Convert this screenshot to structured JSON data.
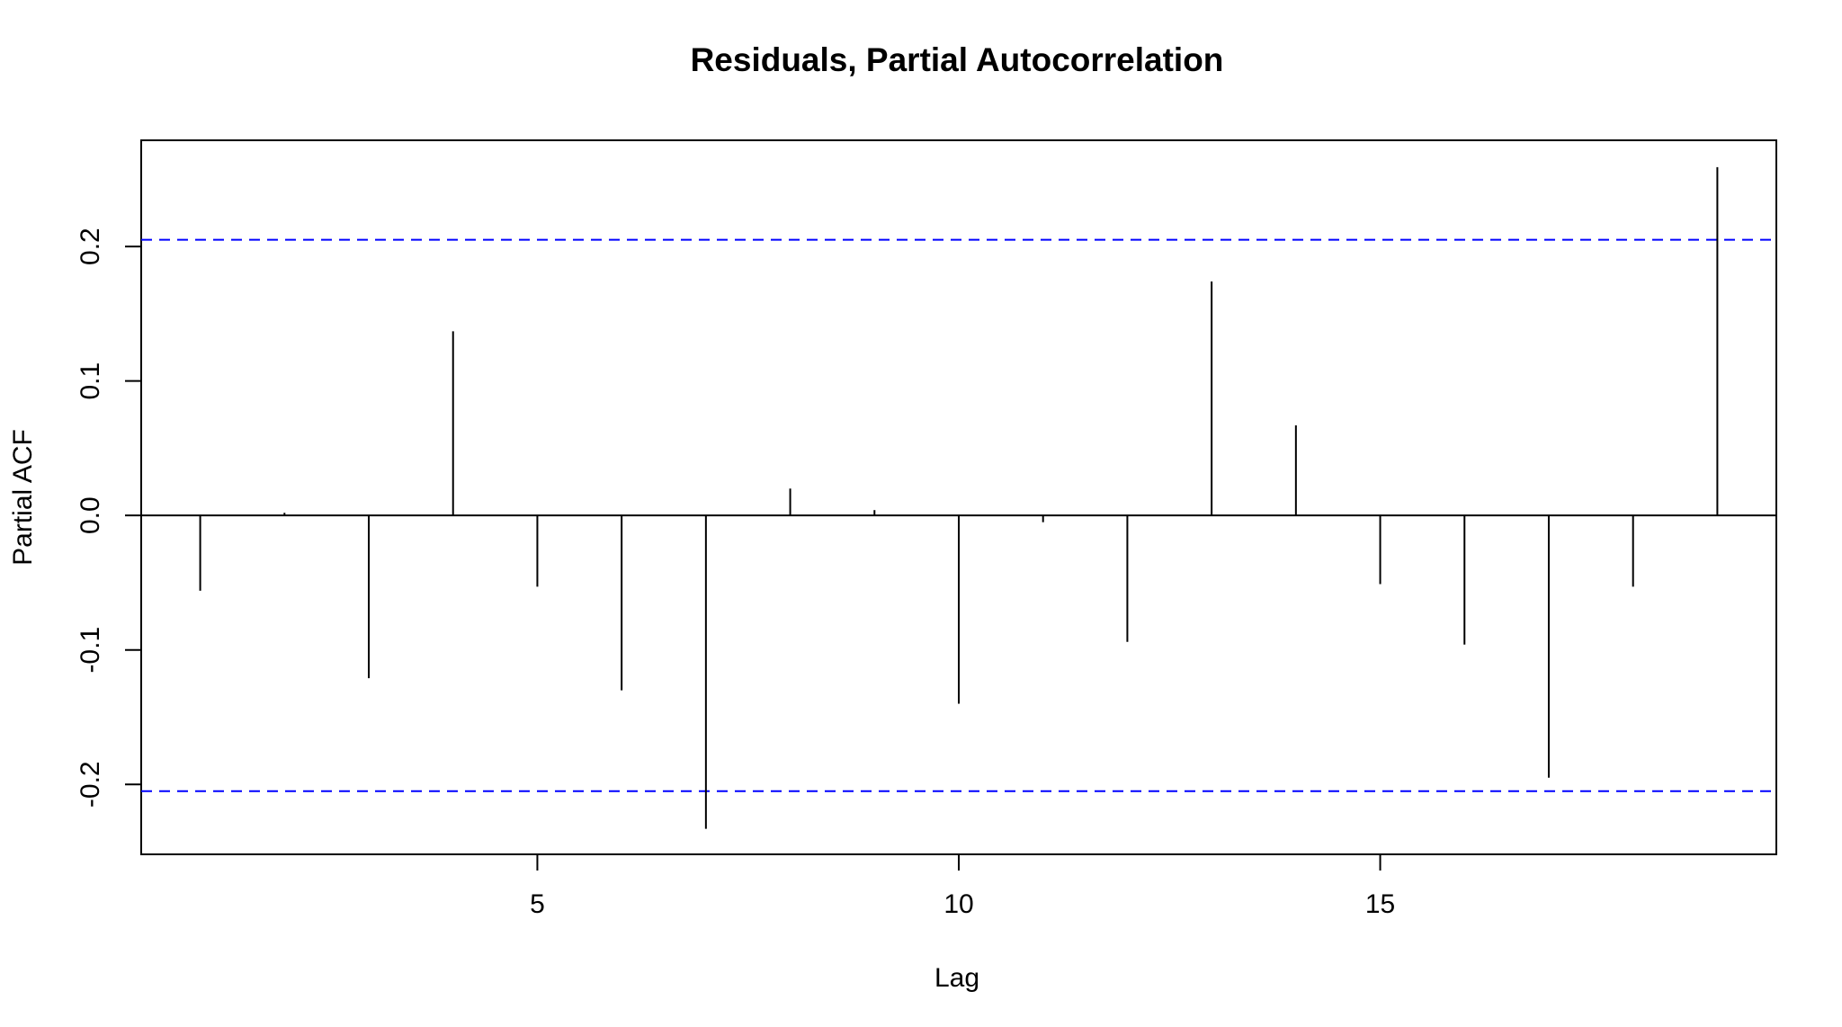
{
  "chart_data": {
    "type": "bar",
    "title": "Residuals, Partial Autocorrelation",
    "xlabel": "Lag",
    "ylabel": "Partial ACF",
    "x": [
      1,
      2,
      3,
      4,
      5,
      6,
      7,
      8,
      9,
      10,
      11,
      12,
      13,
      14,
      15,
      16,
      17,
      18,
      19
    ],
    "values": [
      -0.056,
      0.002,
      -0.121,
      0.137,
      -0.053,
      -0.13,
      -0.233,
      0.02,
      0.004,
      -0.14,
      -0.005,
      -0.094,
      0.174,
      0.067,
      -0.051,
      -0.096,
      -0.195,
      -0.053,
      0.259
    ],
    "confidence_bounds": [
      0.205,
      -0.205
    ],
    "bound_color": "#0000ff",
    "xlim": [
      0.3,
      19.7
    ],
    "ylim": [
      -0.252,
      0.279
    ],
    "xticks": [
      5,
      10,
      15
    ],
    "xtick_labels": [
      "5",
      "10",
      "15"
    ],
    "yticks": [
      -0.2,
      -0.1,
      0.0,
      0.1,
      0.2
    ],
    "ytick_labels": [
      "-0.2",
      "-0.1",
      "0.0",
      "0.1",
      "0.2"
    ],
    "grid": false,
    "legend": "none"
  }
}
